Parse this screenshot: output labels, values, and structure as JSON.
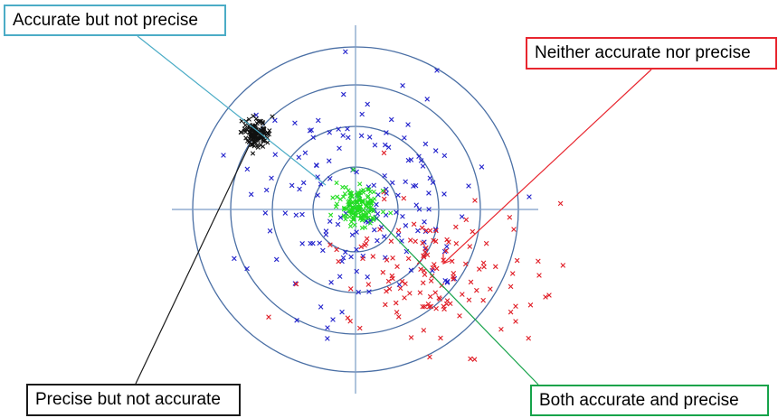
{
  "labels": {
    "accurate_not_precise": "Accurate but not precise",
    "neither": "Neither accurate nor precise",
    "precise_not_accurate": "Precise but not accurate",
    "both": "Both accurate and precise"
  },
  "colors": {
    "ring": "#4a6fa5",
    "axis": "#7a9cc6",
    "blue_marks": "#2222cc",
    "red_marks": "#e01b24",
    "black_marks": "#111111",
    "green_marks": "#22dd22",
    "box_accurate": "#4bacc6",
    "box_neither": "#e8262f",
    "box_precise": "#1a1a1a",
    "box_both": "#16a34a"
  },
  "marker_glyph": "x"
}
